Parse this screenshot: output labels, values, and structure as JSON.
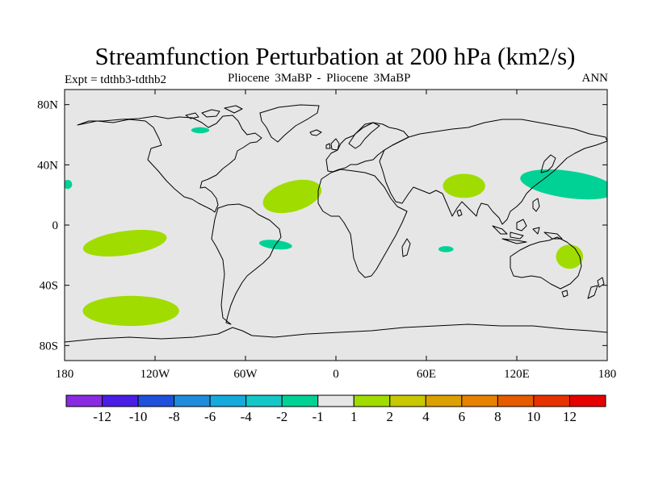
{
  "header": {
    "title": "Streamfunction Perturbation at 200 hPa (km2/s)",
    "experiment": "Expt = tdthb3-tdthb2",
    "comparison": "Pliocene   3MaBP - Pliocene   3MaBP",
    "season": "ANN"
  },
  "chart_data": {
    "type": "heatmap",
    "title": "Streamfunction Perturbation at 200 hPa (km2/s)",
    "projection": "cylindrical-equidistant",
    "xlim": [
      -180,
      180
    ],
    "ylim": [
      -90,
      90
    ],
    "x_ticks": [
      {
        "value": -180,
        "label": "180"
      },
      {
        "value": -120,
        "label": "120W"
      },
      {
        "value": -60,
        "label": "60W"
      },
      {
        "value": 0,
        "label": "0"
      },
      {
        "value": 60,
        "label": "60E"
      },
      {
        "value": 120,
        "label": "120E"
      },
      {
        "value": 180,
        "label": "180"
      }
    ],
    "y_ticks": [
      {
        "value": 80,
        "label": "80N"
      },
      {
        "value": 40,
        "label": "40N"
      },
      {
        "value": 0,
        "label": "0"
      },
      {
        "value": -40,
        "label": "40S"
      },
      {
        "value": -80,
        "label": "80S"
      }
    ],
    "background_color": "#e6e6e6",
    "colorbar": {
      "colors": [
        "#8a2be2",
        "#4b1ee6",
        "#1e50dc",
        "#1e8cdc",
        "#14aadc",
        "#14c8c8",
        "#00d296",
        "#e6e6e6",
        "#a0dc00",
        "#c8c800",
        "#dca000",
        "#e68200",
        "#e65a00",
        "#e63200",
        "#e60000"
      ],
      "labels": [
        "-12",
        "-10",
        "-8",
        "-6",
        "-4",
        "-2",
        "-1",
        "1",
        "2",
        "4",
        "6",
        "8",
        "10",
        "12"
      ]
    },
    "regions": [
      {
        "lon": -140,
        "lat": -12,
        "rx": 28,
        "ry": 8,
        "rot": -8,
        "level": "1 to 2",
        "color": "#a0dc00"
      },
      {
        "lon": -136,
        "lat": -57,
        "rx": 32,
        "ry": 10,
        "rot": 0,
        "level": "1 to 2",
        "color": "#a0dc00"
      },
      {
        "lon": -29,
        "lat": 19,
        "rx": 20,
        "ry": 10,
        "rot": -16,
        "level": "1 to 2",
        "color": "#a0dc00"
      },
      {
        "lon": 85,
        "lat": 26,
        "rx": 14,
        "ry": 8,
        "rot": 0,
        "level": "1 to 2",
        "color": "#a0dc00"
      },
      {
        "lon": 155,
        "lat": -21,
        "rx": 9,
        "ry": 8,
        "rot": 0,
        "level": "1 to 2",
        "color": "#a0dc00"
      },
      {
        "lon": -90,
        "lat": 63,
        "rx": 6,
        "ry": 2,
        "rot": 0,
        "level": "-2 to -1",
        "color": "#00d296"
      },
      {
        "lon": -178,
        "lat": 27,
        "rx": 3,
        "ry": 3,
        "rot": 0,
        "level": "-2 to -1",
        "color": "#00d296"
      },
      {
        "lon": -40,
        "lat": -13,
        "rx": 11,
        "ry": 3,
        "rot": 6,
        "level": "-2 to -1",
        "color": "#00d296"
      },
      {
        "lon": 73,
        "lat": -16,
        "rx": 5,
        "ry": 2,
        "rot": 0,
        "level": "-2 to -1",
        "color": "#00d296"
      },
      {
        "lon": 154,
        "lat": 27,
        "rx": 32,
        "ry": 9,
        "rot": 8,
        "level": "-2 to -1",
        "color": "#00d296"
      }
    ],
    "xlabel": "",
    "ylabel": ""
  }
}
